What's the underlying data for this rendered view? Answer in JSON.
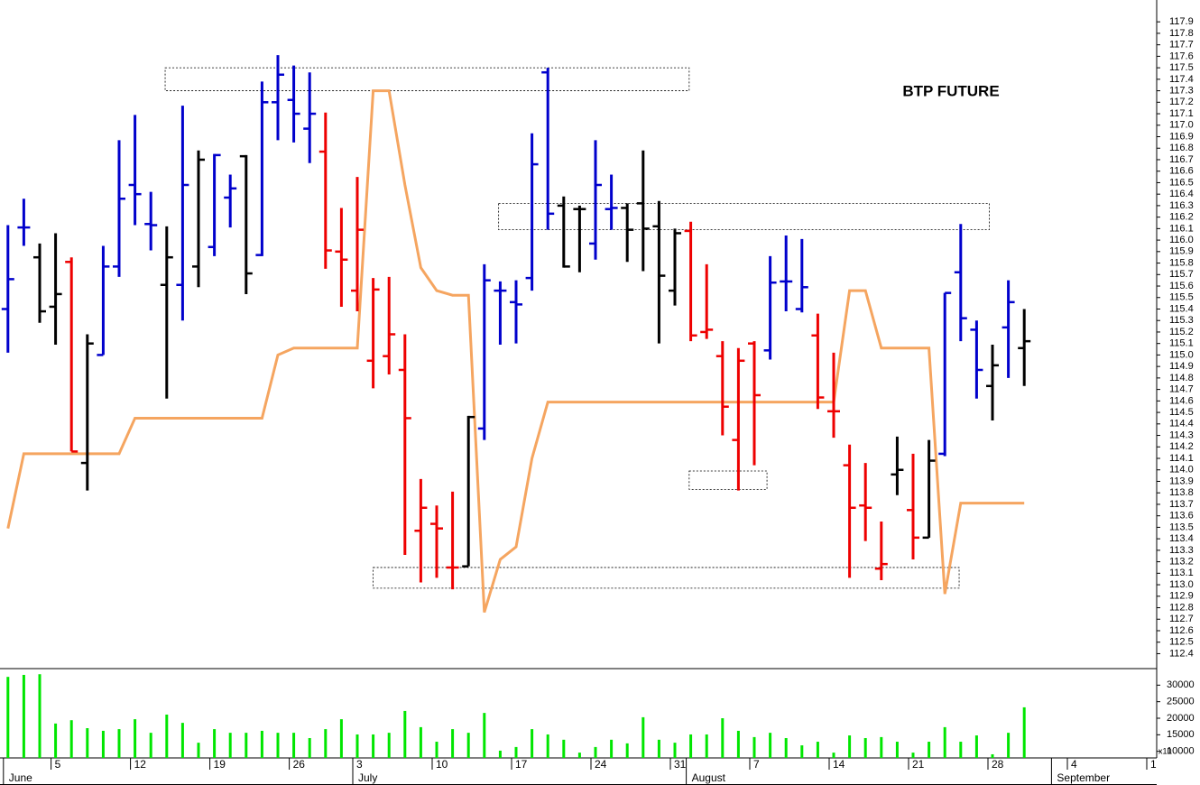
{
  "chart_data": {
    "type": "ohlc",
    "title": "BTP FUTURE",
    "categories": [
      null,
      null,
      null,
      "5",
      null,
      null,
      null,
      null,
      "12",
      null,
      null,
      null,
      null,
      "19",
      null,
      null,
      null,
      null,
      "26",
      null,
      null,
      null,
      "3",
      null,
      null,
      null,
      null,
      "10",
      null,
      null,
      null,
      null,
      "17",
      null,
      null,
      null,
      null,
      "24",
      null,
      null,
      null,
      null,
      "31",
      null,
      null,
      null,
      null,
      "7",
      null,
      null,
      null,
      null,
      "14",
      null,
      null,
      null,
      null,
      "21",
      null,
      null,
      null,
      null,
      "28",
      null,
      null,
      null,
      null,
      "4",
      null,
      null,
      null,
      null,
      "1"
    ],
    "months": [
      "June",
      null,
      null,
      null,
      null,
      null,
      null,
      null,
      null,
      null,
      null,
      null,
      null,
      null,
      null,
      null,
      null,
      null,
      null,
      null,
      null,
      null,
      "July",
      null,
      null,
      null,
      null,
      null,
      null,
      null,
      null,
      null,
      null,
      null,
      null,
      null,
      null,
      null,
      null,
      null,
      null,
      null,
      null,
      "August",
      null,
      null,
      null,
      null,
      null,
      null,
      null,
      null,
      null,
      null,
      null,
      null,
      null,
      null,
      null,
      null,
      null,
      null,
      null,
      null,
      null,
      null,
      "September",
      null,
      null,
      null,
      null,
      null,
      null
    ],
    "open": [
      115.4,
      116.11,
      115.85,
      115.42,
      115.81,
      114.06,
      115.0,
      115.77,
      116.48,
      116.14,
      115.61,
      115.61,
      115.77,
      115.94,
      116.37,
      116.73,
      115.87,
      117.2,
      117.22,
      116.97,
      116.77,
      115.9,
      115.56,
      114.95,
      114.99,
      114.87,
      113.47,
      113.53,
      113.15,
      113.16,
      114.36,
      115.56,
      115.46,
      115.67,
      117.46,
      116.3,
      116.27,
      115.97,
      116.27,
      116.28,
      116.32,
      116.12,
      115.56,
      116.08,
      115.2,
      114.99,
      114.26,
      115.1,
      115.04,
      115.64,
      115.4,
      115.17,
      114.51,
      114.04,
      113.69,
      113.14,
      113.96,
      113.65,
      113.41,
      114.14,
      115.72,
      115.22,
      114.73,
      115.24,
      115.06,
      null,
      null,
      null,
      null,
      null,
      null,
      null,
      null
    ],
    "high": [
      116.13,
      116.36,
      115.97,
      116.06,
      115.85,
      115.18,
      115.95,
      116.87,
      117.09,
      116.42,
      116.12,
      117.17,
      116.78,
      116.75,
      116.57,
      116.74,
      117.38,
      117.61,
      117.52,
      117.46,
      117.11,
      116.28,
      116.55,
      115.67,
      115.68,
      115.18,
      113.92,
      113.69,
      113.81,
      114.47,
      115.79,
      115.64,
      115.65,
      116.93,
      117.5,
      116.38,
      116.3,
      116.87,
      116.57,
      116.32,
      116.78,
      116.34,
      116.1,
      116.16,
      115.79,
      115.12,
      115.06,
      115.12,
      115.86,
      116.04,
      116.01,
      115.36,
      115.02,
      114.22,
      114.06,
      113.55,
      114.29,
      114.14,
      114.26,
      115.54,
      116.14,
      115.3,
      115.09,
      115.65,
      115.4,
      null,
      null,
      null,
      null,
      null,
      null,
      null,
      null
    ],
    "low": [
      115.02,
      115.95,
      115.28,
      115.09,
      114.16,
      113.82,
      115.0,
      115.68,
      116.13,
      115.91,
      114.62,
      115.3,
      115.59,
      115.86,
      116.11,
      115.53,
      115.86,
      116.87,
      116.85,
      116.67,
      115.75,
      115.42,
      115.38,
      114.71,
      114.83,
      113.26,
      113.02,
      113.06,
      112.96,
      113.16,
      114.26,
      115.09,
      115.1,
      115.56,
      116.09,
      115.76,
      115.72,
      115.83,
      116.09,
      115.81,
      115.73,
      115.1,
      115.43,
      115.12,
      115.14,
      114.3,
      113.82,
      114.04,
      114.96,
      115.38,
      115.37,
      114.53,
      114.28,
      113.06,
      113.38,
      113.04,
      113.78,
      113.22,
      113.41,
      114.12,
      115.12,
      114.62,
      114.43,
      114.8,
      114.73,
      null,
      null,
      null,
      null,
      null,
      null,
      null,
      null
    ],
    "close": [
      115.66,
      116.11,
      115.38,
      115.53,
      114.16,
      115.1,
      115.77,
      116.36,
      116.4,
      116.13,
      115.85,
      116.48,
      116.7,
      116.74,
      116.45,
      115.71,
      117.2,
      117.44,
      117.1,
      117.1,
      115.91,
      115.83,
      116.09,
      115.57,
      115.18,
      114.45,
      113.67,
      113.49,
      113.15,
      114.46,
      115.65,
      115.56,
      115.44,
      116.66,
      116.23,
      115.77,
      116.27,
      116.48,
      116.28,
      116.09,
      116.1,
      115.69,
      116.06,
      115.17,
      115.22,
      114.55,
      114.95,
      114.65,
      115.63,
      115.64,
      115.59,
      114.63,
      114.51,
      113.67,
      113.67,
      113.18,
      114.0,
      113.41,
      114.08,
      115.54,
      115.32,
      114.87,
      114.91,
      115.46,
      115.12,
      null,
      null,
      null,
      null,
      null,
      null,
      null,
      null
    ],
    "colors": [
      "#0000cc",
      "#0000cc",
      "#000000",
      "#000000",
      "#ee0000",
      "#000000",
      "#0000cc",
      "#0000cc",
      "#0000cc",
      "#0000cc",
      "#000000",
      "#0000cc",
      "#000000",
      "#0000cc",
      "#0000cc",
      "#000000",
      "#0000cc",
      "#0000cc",
      "#0000cc",
      "#0000cc",
      "#ee0000",
      "#ee0000",
      "#ee0000",
      "#ee0000",
      "#ee0000",
      "#ee0000",
      "#ee0000",
      "#ee0000",
      "#ee0000",
      "#000000",
      "#0000cc",
      "#0000cc",
      "#0000cc",
      "#0000cc",
      "#0000cc",
      "#000000",
      "#000000",
      "#0000cc",
      "#0000cc",
      "#000000",
      "#000000",
      "#000000",
      "#000000",
      "#ee0000",
      "#ee0000",
      "#ee0000",
      "#ee0000",
      "#ee0000",
      "#0000cc",
      "#0000cc",
      "#0000cc",
      "#ee0000",
      "#ee0000",
      "#ee0000",
      "#ee0000",
      "#ee0000",
      "#000000",
      "#ee0000",
      "#000000",
      "#0000cc",
      "#0000cc",
      "#0000cc",
      "#000000",
      "#0000cc",
      "#000000",
      null,
      null,
      null,
      null,
      null,
      null,
      null,
      null
    ],
    "line": {
      "color": "#f5a560",
      "values": [
        113.49,
        114.14,
        114.14,
        114.14,
        114.14,
        114.14,
        114.14,
        114.14,
        114.45,
        114.45,
        114.45,
        114.45,
        114.45,
        114.45,
        114.45,
        114.45,
        114.45,
        115.0,
        115.06,
        115.06,
        115.06,
        115.06,
        115.06,
        117.3,
        117.3,
        116.48,
        115.76,
        115.56,
        115.52,
        115.52,
        112.76,
        113.22,
        113.33,
        114.1,
        114.59,
        114.59,
        114.59,
        114.59,
        114.59,
        114.59,
        114.59,
        114.59,
        114.59,
        114.59,
        114.59,
        114.59,
        114.59,
        114.59,
        114.59,
        114.59,
        114.59,
        114.59,
        114.59,
        115.56,
        115.56,
        115.06,
        115.06,
        115.06,
        115.06,
        112.92,
        113.71,
        113.71,
        113.71,
        113.71,
        113.71,
        null,
        null,
        null,
        null,
        null,
        null,
        null,
        null
      ]
    },
    "ylim": [
      112.27,
      118.09
    ],
    "yticks": [
      112.4,
      112.5,
      112.6,
      112.7,
      112.8,
      112.9,
      {
        "value": 113,
        "label": "113.0"
      },
      113.1,
      113.2,
      113.3,
      113.4,
      113.5,
      113.6,
      113.7,
      113.8,
      113.9,
      {
        "value": 114,
        "label": "114.0"
      },
      114.1,
      114.2,
      114.3,
      114.4,
      114.5,
      114.6,
      114.7,
      114.8,
      114.9,
      {
        "value": 115,
        "label": "115.0"
      },
      115.1,
      115.2,
      115.3,
      115.4,
      115.5,
      115.6,
      115.7,
      115.8,
      115.9,
      {
        "value": 116,
        "label": "116.0"
      },
      116.1,
      116.2,
      116.3,
      116.4,
      116.5,
      116.6,
      116.7,
      116.8,
      116.9,
      {
        "value": 117,
        "label": "117.0"
      },
      117.1,
      117.2,
      117.3,
      117.4,
      117.5,
      117.6,
      117.7,
      117.8,
      117.9
    ],
    "zones": [
      {
        "x": [
          9.9,
          42.9
        ],
        "y": [
          117.3,
          117.5
        ]
      },
      {
        "x": [
          30.9,
          61.8
        ],
        "y": [
          116.09,
          116.32
        ]
      },
      {
        "x": [
          42.9,
          47.8
        ],
        "y": [
          113.83,
          113.99
        ]
      },
      {
        "x": [
          23,
          59.9
        ],
        "y": [
          112.97,
          113.15
        ]
      }
    ],
    "volume": {
      "color": "#00e600",
      "note": "x10",
      "values": [
        32500,
        33100,
        33300,
        18400,
        19400,
        17000,
        16200,
        16700,
        19700,
        15600,
        21100,
        18600,
        12600,
        16700,
        15600,
        15600,
        16200,
        15600,
        15600,
        14000,
        16700,
        19700,
        15100,
        15100,
        15600,
        22200,
        17300,
        12900,
        16700,
        15600,
        21600,
        10200,
        11300,
        16700,
        15100,
        13500,
        9600,
        11300,
        13500,
        12400,
        20300,
        13500,
        12600,
        15100,
        15100,
        20000,
        16200,
        14300,
        15600,
        14000,
        11800,
        12900,
        9600,
        14800,
        14000,
        14300,
        12900,
        9600,
        12900,
        17300,
        12900,
        14800,
        9100,
        15600,
        23300,
        null,
        null,
        null,
        null,
        null,
        null,
        null,
        null
      ],
      "ylim": [
        8000,
        35000
      ],
      "yticks": [
        10000,
        15000,
        20000,
        25000,
        30000
      ]
    }
  }
}
